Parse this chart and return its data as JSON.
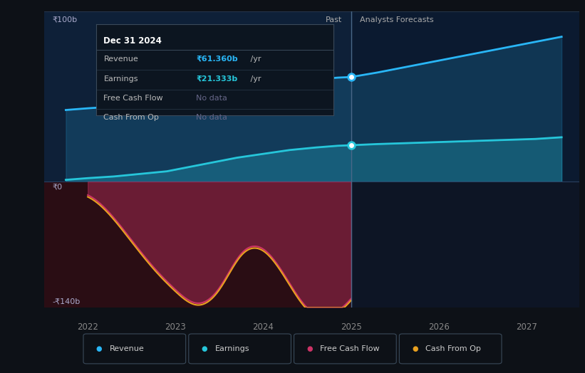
{
  "bg_color": "#0d1117",
  "plot_bg_dark": "#0d1b2e",
  "plot_bg_past_top": "#0e1f35",
  "plot_bg_fore_top": "#0a1828",
  "plot_bg_past_bot": "#1a0a12",
  "plot_bg_fore_bot": "#0d1020",
  "divider_color": "#3a5570",
  "x_min": 2021.5,
  "x_max": 2027.6,
  "divider_x": 2025.0,
  "y_top_min": 0,
  "y_top_max": 100,
  "y_bot_min": -140,
  "y_bot_max": 0,
  "revenue_x": [
    2021.75,
    2022.0,
    2022.3,
    2022.6,
    2022.9,
    2023.1,
    2023.3,
    2023.5,
    2023.7,
    2023.9,
    2024.1,
    2024.3,
    2024.6,
    2024.85,
    2025.0,
    2025.3,
    2025.6,
    2025.9,
    2026.2,
    2026.5,
    2026.8,
    2027.1,
    2027.4
  ],
  "revenue_y": [
    42,
    43,
    44,
    45,
    47,
    49,
    54,
    57,
    58,
    58.5,
    59,
    59,
    60,
    61,
    61.36,
    64,
    67,
    70,
    73,
    76,
    79,
    82,
    85
  ],
  "earnings_x": [
    2021.75,
    2022.0,
    2022.3,
    2022.6,
    2022.9,
    2023.1,
    2023.3,
    2023.5,
    2023.7,
    2023.9,
    2024.1,
    2024.3,
    2024.6,
    2024.85,
    2025.0,
    2025.3,
    2025.6,
    2025.9,
    2026.2,
    2026.5,
    2026.8,
    2027.1,
    2027.4
  ],
  "earnings_y": [
    1,
    2,
    3,
    4.5,
    6,
    8,
    10,
    12,
    14,
    15.5,
    17,
    18.5,
    20,
    21,
    21.333,
    22,
    22.5,
    23,
    23.5,
    24,
    24.5,
    25,
    26
  ],
  "cashflow_x": [
    2022.0,
    2022.25,
    2022.5,
    2022.75,
    2023.0,
    2023.25,
    2023.5,
    2023.75,
    2024.0,
    2024.25,
    2024.5,
    2024.75,
    2025.0
  ],
  "cashflow_y": [
    -15,
    -35,
    -65,
    -95,
    -120,
    -135,
    -118,
    -80,
    -75,
    -105,
    -140,
    -148,
    -130
  ],
  "cashfromop_x": [
    2022.0,
    2022.25,
    2022.5,
    2022.75,
    2023.0,
    2023.25,
    2023.5,
    2023.75,
    2024.0,
    2024.25,
    2024.5,
    2024.75,
    2025.0
  ],
  "cashfromop_y": [
    -17,
    -37,
    -67,
    -97,
    -122,
    -137,
    -120,
    -82,
    -77,
    -107,
    -142,
    -150,
    -132
  ],
  "revenue_color": "#29b6f6",
  "earnings_color": "#26c6da",
  "cashflow_color": "#cc3366",
  "cashfromop_color": "#e8a020",
  "past_label": "Past",
  "forecast_label": "Analysts Forecasts",
  "tooltip_title": "Dec 31 2024",
  "tooltip_revenue": "₹61.360b",
  "tooltip_revenue_suffix": " /yr",
  "tooltip_earnings": "₹21.333b",
  "tooltip_earnings_suffix": " /yr",
  "tooltip_revenue_color": "#29b6f6",
  "tooltip_earnings_color": "#26c6da",
  "tooltip_nodata_color": "#666688",
  "y_top_label_100": "₹100b",
  "y_top_label_0": "₹0",
  "y_bot_label": "-₹140b",
  "x_ticks": [
    2022,
    2023,
    2024,
    2025,
    2026,
    2027
  ],
  "legend_items": [
    "Revenue",
    "Earnings",
    "Free Cash Flow",
    "Cash From Op"
  ],
  "legend_colors": [
    "#29b6f6",
    "#26c6da",
    "#cc3366",
    "#e8a020"
  ]
}
